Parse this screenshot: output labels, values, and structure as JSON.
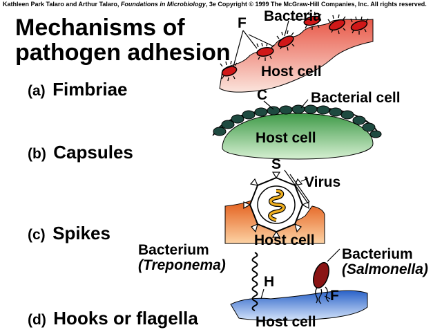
{
  "copyright": {
    "authors": "Kathleen Park Talaro and Arthur Talaro, ",
    "book": "Foundations in Microbiology",
    "rest": ", 3e Copyright © 1999 The McGraw-Hill Companies, Inc.  All rights reserved."
  },
  "title": {
    "line1": "Mechanisms of",
    "line2": "pathogen adhesion"
  },
  "items": [
    {
      "letter": "(a)",
      "name": "Fimbriae"
    },
    {
      "letter": "(b)",
      "name": "Capsules"
    },
    {
      "letter": "(c)",
      "name": "Spikes"
    },
    {
      "letter": "(d)",
      "name": "Hooks or flagella"
    }
  ],
  "panel_a": {
    "label_f": "F",
    "label_bacteria": "Bacteria",
    "label_host": "Host cell"
  },
  "panel_b": {
    "label_c": "C",
    "label_bacterial_cell": "Bacterial cell",
    "label_host": "Host cell"
  },
  "panel_c": {
    "label_s": "S",
    "label_virus": "Virus",
    "label_host": "Host cell"
  },
  "panel_d": {
    "label_bacterium_left": "Bacterium",
    "label_treponema": "(Treponema)",
    "label_h": "H",
    "label_bacterium_right": "Bacterium",
    "label_salmonella": "(Salmonella)",
    "label_f": "F",
    "label_host": "Host cell"
  },
  "colors": {
    "fimbriae_host": "#f08a74",
    "bacteria_red": "#d01818",
    "capsule_host": "#58b45c",
    "capsule_dark": "#1e4a40",
    "spike_host": "#f06a18",
    "virus_core": "#f0b020",
    "flagella_host": "#3a72d0",
    "salmonella": "#8a1414"
  }
}
